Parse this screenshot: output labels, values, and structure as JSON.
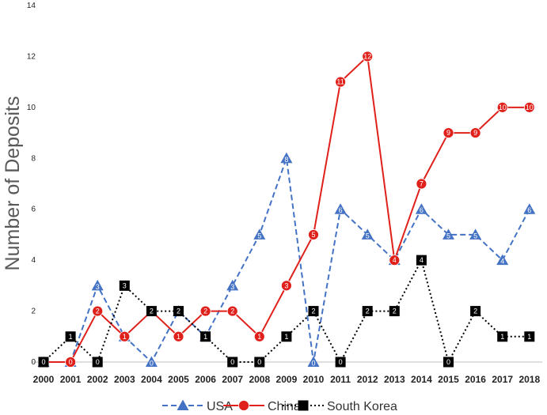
{
  "chart_data": {
    "type": "line",
    "title": "",
    "xlabel": "",
    "ylabel": "Number of Deposits",
    "ylim": [
      0,
      14
    ],
    "yticks": [
      0,
      2,
      4,
      6,
      8,
      10,
      12,
      14
    ],
    "grid": false,
    "legend_position": "bottom",
    "categories": [
      "2000",
      "2001",
      "2002",
      "2003",
      "2004",
      "2005",
      "2006",
      "2007",
      "2008",
      "2009",
      "2010",
      "2011",
      "2012",
      "2013",
      "2014",
      "2015",
      "2016",
      "2017",
      "2018"
    ],
    "series": [
      {
        "name": "USA",
        "color": "#4472c4",
        "marker": "triangle",
        "line": "dashed",
        "values": [
          0,
          0,
          3,
          1,
          0,
          2,
          1,
          3,
          5,
          8,
          0,
          6,
          5,
          4,
          6,
          5,
          5,
          4,
          6
        ]
      },
      {
        "name": "China",
        "color": "#e0201b",
        "marker": "circle",
        "line": "solid",
        "values": [
          0,
          0,
          2,
          1,
          2,
          1,
          2,
          2,
          1,
          3,
          5,
          11,
          12,
          4,
          7,
          9,
          9,
          10,
          10
        ]
      },
      {
        "name": "South Korea",
        "color": "#000000",
        "marker": "square",
        "line": "dotted",
        "values": [
          0,
          1,
          0,
          3,
          2,
          2,
          1,
          0,
          0,
          1,
          2,
          0,
          2,
          2,
          4,
          0,
          2,
          1,
          1
        ]
      }
    ]
  }
}
